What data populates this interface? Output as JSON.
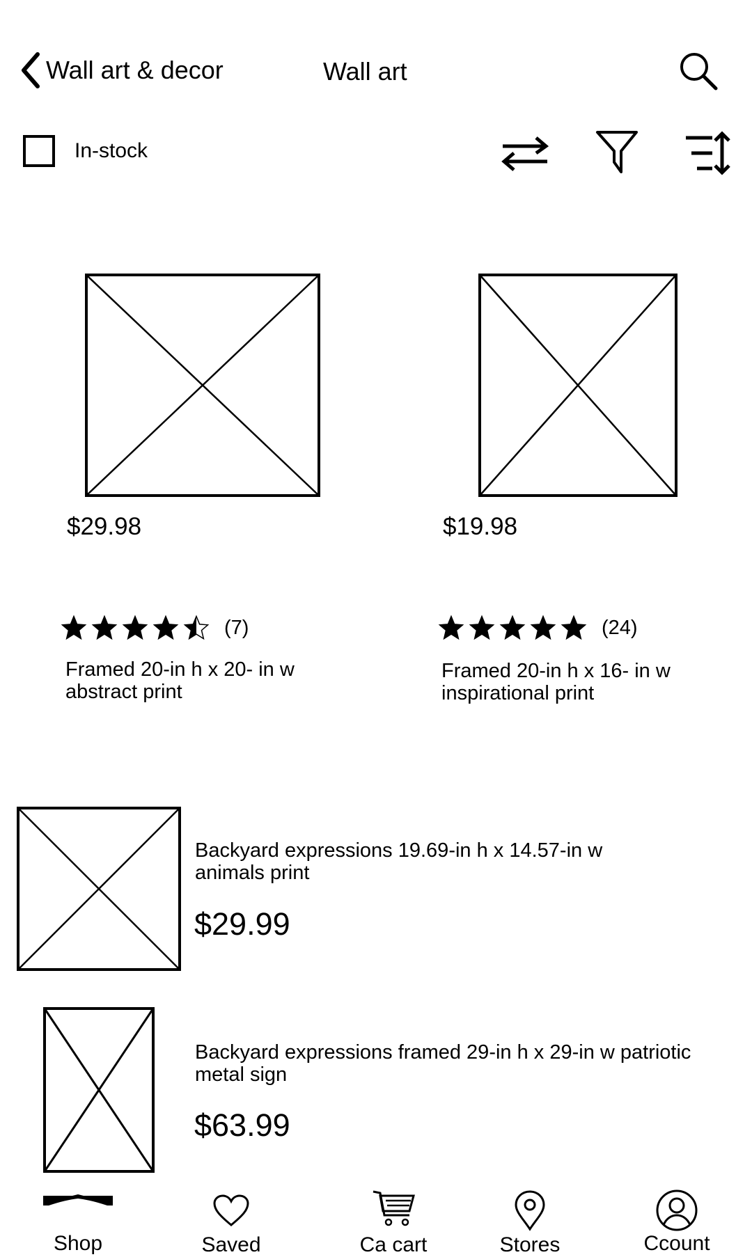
{
  "header": {
    "back_label": "Wall art & decor",
    "title": "Wall art",
    "back_icon": "chevron-left-icon",
    "search_icon": "search-icon"
  },
  "filters": {
    "in_stock_label": "In-stock",
    "in_stock_checked": false,
    "compare_icon": "swap-arrows-icon",
    "filter_icon": "filter-icon",
    "sort_icon": "sort-icon"
  },
  "grid_products": [
    {
      "price": "$29.98",
      "rating": 4.5,
      "review_count": "(7)",
      "title_line1": "Framed 20-in h x 20- in w",
      "title_line2": "abstract print"
    },
    {
      "price": "$19.98",
      "rating": 5,
      "review_count": "(24)",
      "title_line1": "Framed 20-in h x 16- in w",
      "title_line2": "inspirational print"
    }
  ],
  "list_products": [
    {
      "title_line1": "Backyard expressions 19.69-in h x 14.57-in w",
      "title_line2": "animals print",
      "price": "$29.99"
    },
    {
      "title_line1": "Backyard expressions framed 29-in h x 29-in w patriotic",
      "title_line2": "metal sign",
      "price": "$63.99"
    }
  ],
  "bottom_nav": [
    {
      "label": "Shop",
      "icon": "shop-icon"
    },
    {
      "label": "Saved",
      "icon": "heart-icon"
    },
    {
      "label": "Ca cart",
      "icon": "cart-icon"
    },
    {
      "label": "Stores",
      "icon": "location-pin-icon"
    },
    {
      "label": "Ccount",
      "icon": "account-icon"
    }
  ]
}
